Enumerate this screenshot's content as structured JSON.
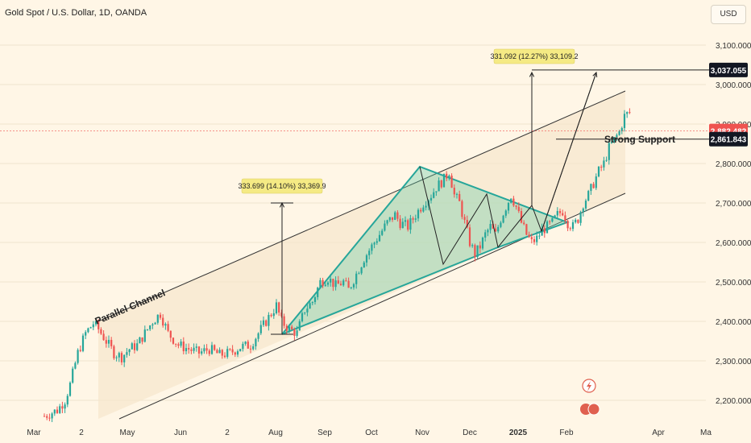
{
  "header": {
    "title": "Gold Spot / U.S. Dollar, 1D, OANDA"
  },
  "currency_button": "USD",
  "colors": {
    "bull": "#26a69a",
    "bear": "#ef5350",
    "triangle_fill": "#5fc9a4",
    "channel_fill": "#f6e7cc",
    "label_fill": "#f5ea84"
  },
  "chart_data": {
    "type": "candlestick",
    "x_tick_labels": [
      "Mar",
      "2",
      "May",
      "Jun",
      "2",
      "Aug",
      "Sep",
      "Oct",
      "Nov",
      "Dec",
      "2025",
      "Feb",
      "Apr",
      "Ma"
    ],
    "y_tick_labels": [
      "3,100.000",
      "3,000.000",
      "2,900.000",
      "2,800.000",
      "2,700.000",
      "2,600.000",
      "2,500.000",
      "2,400.000",
      "2,300.000",
      "2,200.000"
    ],
    "y_ticks": [
      3100,
      3000,
      2900,
      2800,
      2700,
      2600,
      2500,
      2400,
      2300,
      2200
    ],
    "ylim": [
      2150,
      3150
    ],
    "price_badges": [
      {
        "text": "3,037.055",
        "value": 3037.055,
        "style": "dark"
      },
      {
        "text": "2,882.482",
        "value": 2882.482,
        "style": "red"
      },
      {
        "text": "2,861.843",
        "value": 2861.843,
        "style": "dark"
      }
    ],
    "annotations": {
      "channel_label": "Parallel Channel",
      "support_label": "Strong Support",
      "measure_1": "333.699 (14.10%) 33,369.9",
      "measure_2": "331.092 (12.27%) 33,109.2"
    },
    "close_path": [
      [
        0,
        2160
      ],
      [
        5,
        2175
      ],
      [
        8,
        2200
      ],
      [
        10,
        2240
      ],
      [
        13,
        2320
      ],
      [
        16,
        2370
      ],
      [
        19,
        2395
      ],
      [
        21,
        2380
      ],
      [
        24,
        2350
      ],
      [
        27,
        2320
      ],
      [
        30,
        2310
      ],
      [
        33,
        2330
      ],
      [
        36,
        2340
      ],
      [
        39,
        2370
      ],
      [
        42,
        2400
      ],
      [
        45,
        2420
      ],
      [
        48,
        2370
      ],
      [
        52,
        2340
      ],
      [
        56,
        2330
      ],
      [
        60,
        2320
      ],
      [
        64,
        2330
      ],
      [
        68,
        2315
      ],
      [
        72,
        2320
      ],
      [
        76,
        2335
      ],
      [
        80,
        2340
      ],
      [
        84,
        2380
      ],
      [
        88,
        2420
      ],
      [
        90,
        2440
      ],
      [
        92,
        2400
      ],
      [
        95,
        2380
      ],
      [
        98,
        2370
      ],
      [
        101,
        2430
      ],
      [
        104,
        2450
      ],
      [
        107,
        2500
      ],
      [
        110,
        2510
      ],
      [
        113,
        2490
      ],
      [
        116,
        2500
      ],
      [
        118,
        2480
      ],
      [
        121,
        2520
      ],
      [
        124,
        2560
      ],
      [
        127,
        2590
      ],
      [
        130,
        2620
      ],
      [
        133,
        2650
      ],
      [
        136,
        2670
      ],
      [
        138,
        2650
      ],
      [
        141,
        2640
      ],
      [
        144,
        2670
      ],
      [
        147,
        2700
      ],
      [
        150,
        2720
      ],
      [
        152,
        2740
      ],
      [
        155,
        2760
      ],
      [
        157,
        2780
      ],
      [
        159,
        2720
      ],
      [
        161,
        2700
      ],
      [
        163,
        2650
      ],
      [
        165,
        2600
      ],
      [
        167,
        2570
      ],
      [
        169,
        2590
      ],
      [
        171,
        2620
      ],
      [
        173,
        2640
      ],
      [
        175,
        2620
      ],
      [
        177,
        2660
      ],
      [
        179,
        2690
      ],
      [
        181,
        2720
      ],
      [
        183,
        2690
      ],
      [
        185,
        2650
      ],
      [
        187,
        2620
      ],
      [
        189,
        2600
      ],
      [
        191,
        2610
      ],
      [
        193,
        2630
      ],
      [
        195,
        2640
      ],
      [
        197,
        2650
      ],
      [
        199,
        2670
      ],
      [
        201,
        2680
      ],
      [
        203,
        2650
      ],
      [
        205,
        2640
      ],
      [
        207,
        2660
      ],
      [
        209,
        2700
      ],
      [
        211,
        2720
      ],
      [
        213,
        2750
      ],
      [
        215,
        2780
      ],
      [
        217,
        2800
      ],
      [
        219,
        2840
      ],
      [
        221,
        2860
      ],
      [
        223,
        2880
      ],
      [
        225,
        2920
      ],
      [
        227,
        2930
      ],
      [
        228,
        2880
      ]
    ]
  }
}
